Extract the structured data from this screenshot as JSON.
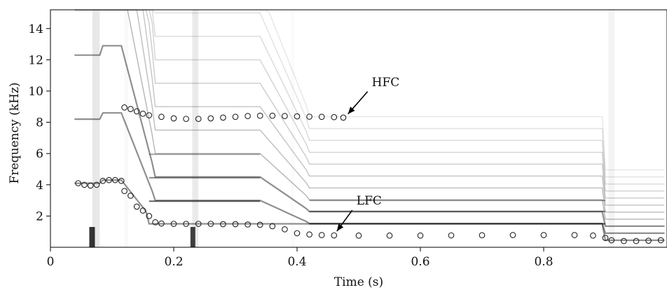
{
  "chart_data": {
    "type": "scatter",
    "xlabel": "Time (s)",
    "ylabel": "Frequency (kHz)",
    "xlim": [
      0,
      1.0
    ],
    "ylim": [
      0,
      15.2
    ],
    "xticks": [
      0,
      0.2,
      0.4,
      0.6,
      0.8
    ],
    "xtick_labels": [
      "0",
      "0.2",
      "0.4",
      "0.6",
      "0.8"
    ],
    "yticks": [
      2,
      4,
      6,
      8,
      10,
      12,
      14
    ],
    "ytick_labels": [
      "2",
      "4",
      "6",
      "8",
      "10",
      "12",
      "14"
    ],
    "grid": false,
    "background": "grayscale spectrogram",
    "marker_color": "#222222",
    "series": [
      {
        "name": "HFC",
        "points": [
          [
            0.12,
            8.95
          ],
          [
            0.13,
            8.85
          ],
          [
            0.14,
            8.7
          ],
          [
            0.15,
            8.55
          ],
          [
            0.16,
            8.45
          ],
          [
            0.18,
            8.35
          ],
          [
            0.2,
            8.25
          ],
          [
            0.22,
            8.22
          ],
          [
            0.24,
            8.22
          ],
          [
            0.26,
            8.25
          ],
          [
            0.28,
            8.3
          ],
          [
            0.3,
            8.35
          ],
          [
            0.32,
            8.4
          ],
          [
            0.34,
            8.42
          ],
          [
            0.36,
            8.42
          ],
          [
            0.38,
            8.4
          ],
          [
            0.4,
            8.38
          ],
          [
            0.42,
            8.36
          ],
          [
            0.44,
            8.35
          ],
          [
            0.46,
            8.33
          ],
          [
            0.475,
            8.3
          ]
        ]
      },
      {
        "name": "LFC",
        "points": [
          [
            0.045,
            4.1
          ],
          [
            0.055,
            4.0
          ],
          [
            0.065,
            3.95
          ],
          [
            0.075,
            4.0
          ],
          [
            0.085,
            4.25
          ],
          [
            0.095,
            4.3
          ],
          [
            0.105,
            4.3
          ],
          [
            0.115,
            4.25
          ],
          [
            0.12,
            3.6
          ],
          [
            0.13,
            3.3
          ],
          [
            0.14,
            2.6
          ],
          [
            0.15,
            2.35
          ],
          [
            0.16,
            2.0
          ],
          [
            0.17,
            1.6
          ],
          [
            0.18,
            1.52
          ],
          [
            0.2,
            1.5
          ],
          [
            0.22,
            1.5
          ],
          [
            0.24,
            1.5
          ],
          [
            0.26,
            1.5
          ],
          [
            0.28,
            1.48
          ],
          [
            0.3,
            1.48
          ],
          [
            0.32,
            1.46
          ],
          [
            0.34,
            1.44
          ],
          [
            0.36,
            1.35
          ],
          [
            0.38,
            1.15
          ],
          [
            0.4,
            0.9
          ],
          [
            0.42,
            0.82
          ],
          [
            0.44,
            0.78
          ],
          [
            0.46,
            0.76
          ],
          [
            0.5,
            0.75
          ],
          [
            0.55,
            0.75
          ],
          [
            0.6,
            0.75
          ],
          [
            0.65,
            0.76
          ],
          [
            0.7,
            0.77
          ],
          [
            0.75,
            0.78
          ],
          [
            0.8,
            0.78
          ],
          [
            0.85,
            0.78
          ],
          [
            0.88,
            0.75
          ],
          [
            0.9,
            0.6
          ],
          [
            0.91,
            0.45
          ],
          [
            0.93,
            0.4
          ],
          [
            0.95,
            0.4
          ],
          [
            0.97,
            0.42
          ],
          [
            0.99,
            0.45
          ]
        ]
      }
    ],
    "annotations": [
      {
        "text": "HFC",
        "target": [
          0.478,
          8.35
        ]
      },
      {
        "text": "LFC",
        "target": [
          0.46,
          0.85
        ]
      }
    ]
  }
}
